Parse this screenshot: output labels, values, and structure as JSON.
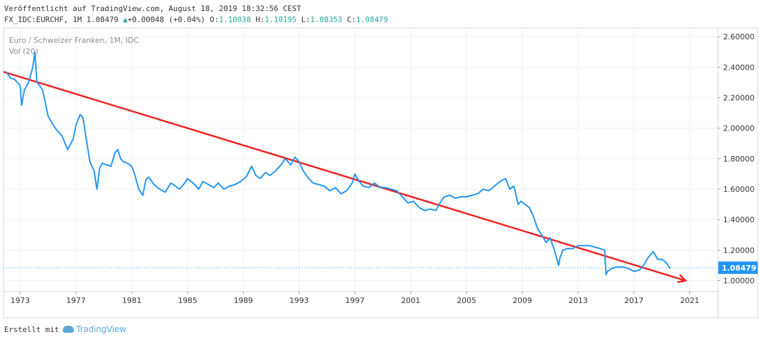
{
  "header": {
    "published": "Veröffentlicht auf TradingView.com, August 18, 2019 18:32:56 CEST",
    "symbol_line_prefix": "FX_IDC:EURCHF, 1M 1.08479 ",
    "change_arrow": "▲",
    "change_text": "+0.00048 (+0.04%)",
    "o_label": "O:",
    "o_value": "1.10038",
    "h_label": "H:",
    "h_value": "1.10195",
    "l_label": "L:",
    "l_value": "1.08353",
    "c_label": "C:",
    "c_value": "1.08479"
  },
  "legend": {
    "series_name": "Euro / Schweizer Franken, 1M, IDC",
    "volume": "Vol (20)"
  },
  "footer": {
    "created_with": "Erstellt mit",
    "brand": "TradingView"
  },
  "colors": {
    "line": "#2196f3",
    "trend": "#f02020",
    "grid": "#eef1f5",
    "axis_text": "#333333",
    "price_label_bg": "#2196f3"
  },
  "chart_data": {
    "type": "line",
    "xlim": [
      1971.8,
      2023.0
    ],
    "ylim": [
      0.93,
      2.66
    ],
    "x_ticks": [
      "1973",
      "1977",
      "1981",
      "1985",
      "1989",
      "1993",
      "1997",
      "2001",
      "2005",
      "2009",
      "2013",
      "2017",
      "2021"
    ],
    "y_ticks": [
      "1.00000",
      "1.20000",
      "1.40000",
      "1.60000",
      "1.80000",
      "2.00000",
      "2.20000",
      "2.40000",
      "2.60000"
    ],
    "last_price_label": "1.08479",
    "last_price": 1.08479,
    "series": [
      {
        "x": [
          1972.0,
          1972.3,
          1972.6,
          1972.8,
          1973.0,
          1973.1,
          1973.3,
          1973.6,
          1973.9,
          1974.05,
          1974.2,
          1974.4,
          1974.6,
          1974.8,
          1975.0,
          1975.3,
          1975.6,
          1976.0,
          1976.4,
          1976.8,
          1977.0,
          1977.3,
          1977.5,
          1977.7,
          1978.0,
          1978.3,
          1978.5,
          1978.7,
          1978.9,
          1979.2,
          1979.5,
          1979.8,
          1980.0,
          1980.2,
          1980.4,
          1980.7,
          1981.0,
          1981.2,
          1981.5,
          1981.8,
          1982.0,
          1982.2,
          1982.6,
          1983.0,
          1983.4,
          1983.8,
          1984.0,
          1984.4,
          1984.8,
          1985.0,
          1985.4,
          1985.8,
          1986.1,
          1986.5,
          1986.9,
          1987.2,
          1987.6,
          1988.0,
          1988.4,
          1988.8,
          1989.2,
          1989.6,
          1989.9,
          1990.2,
          1990.6,
          1990.9,
          1991.3,
          1991.7,
          1992.0,
          1992.4,
          1992.7,
          1993.0,
          1993.3,
          1993.6,
          1994.0,
          1994.4,
          1994.8,
          1995.2,
          1995.6,
          1996.0,
          1996.4,
          1996.8,
          1997.0,
          1997.3,
          1997.6,
          1998.0,
          1998.4,
          1998.8,
          1999.2,
          1999.6,
          2000.0,
          2000.4,
          2000.8,
          2001.2,
          2001.6,
          2002.0,
          2002.4,
          2002.8,
          2003.1,
          2003.4,
          2003.8,
          2004.2,
          2004.6,
          2005.0,
          2005.4,
          2005.8,
          2006.2,
          2006.6,
          2007.0,
          2007.4,
          2007.8,
          2008.1,
          2008.4,
          2008.7,
          2008.9,
          2009.2,
          2009.5,
          2009.8,
          2010.1,
          2010.4,
          2010.7,
          2011.0,
          2011.3,
          2011.6,
          2011.7,
          2011.9,
          2012.2,
          2012.6,
          2013.0,
          2013.4,
          2013.8,
          2014.2,
          2014.6,
          2014.9,
          2015.0,
          2015.1,
          2015.4,
          2015.8,
          2016.2,
          2016.6,
          2017.0,
          2017.4,
          2017.7,
          2018.0,
          2018.2,
          2018.4,
          2018.7,
          2019.0,
          2019.3,
          2019.6
        ],
        "y": [
          2.37,
          2.33,
          2.32,
          2.3,
          2.28,
          2.15,
          2.25,
          2.3,
          2.4,
          2.5,
          2.3,
          2.28,
          2.25,
          2.17,
          2.08,
          2.03,
          1.99,
          1.95,
          1.86,
          1.93,
          2.02,
          2.09,
          2.07,
          1.95,
          1.78,
          1.72,
          1.6,
          1.74,
          1.77,
          1.76,
          1.75,
          1.84,
          1.86,
          1.8,
          1.78,
          1.77,
          1.75,
          1.7,
          1.6,
          1.56,
          1.66,
          1.68,
          1.63,
          1.6,
          1.58,
          1.64,
          1.63,
          1.6,
          1.64,
          1.67,
          1.64,
          1.6,
          1.65,
          1.63,
          1.61,
          1.64,
          1.6,
          1.62,
          1.63,
          1.65,
          1.68,
          1.75,
          1.69,
          1.67,
          1.71,
          1.69,
          1.72,
          1.76,
          1.8,
          1.76,
          1.81,
          1.78,
          1.72,
          1.68,
          1.64,
          1.63,
          1.62,
          1.59,
          1.61,
          1.57,
          1.59,
          1.64,
          1.7,
          1.65,
          1.62,
          1.61,
          1.64,
          1.61,
          1.61,
          1.6,
          1.59,
          1.55,
          1.51,
          1.52,
          1.48,
          1.46,
          1.47,
          1.46,
          1.51,
          1.55,
          1.56,
          1.54,
          1.55,
          1.55,
          1.56,
          1.57,
          1.6,
          1.59,
          1.62,
          1.65,
          1.67,
          1.6,
          1.62,
          1.5,
          1.52,
          1.5,
          1.48,
          1.42,
          1.34,
          1.3,
          1.25,
          1.28,
          1.2,
          1.1,
          1.15,
          1.2,
          1.21,
          1.21,
          1.23,
          1.23,
          1.23,
          1.22,
          1.21,
          1.2,
          1.04,
          1.06,
          1.08,
          1.09,
          1.09,
          1.08,
          1.06,
          1.07,
          1.1,
          1.15,
          1.17,
          1.19,
          1.14,
          1.14,
          1.12,
          1.08
        ]
      }
    ],
    "trendline": {
      "x": [
        1971.8,
        2020.7
      ],
      "y": [
        2.37,
        1.0
      ]
    }
  }
}
